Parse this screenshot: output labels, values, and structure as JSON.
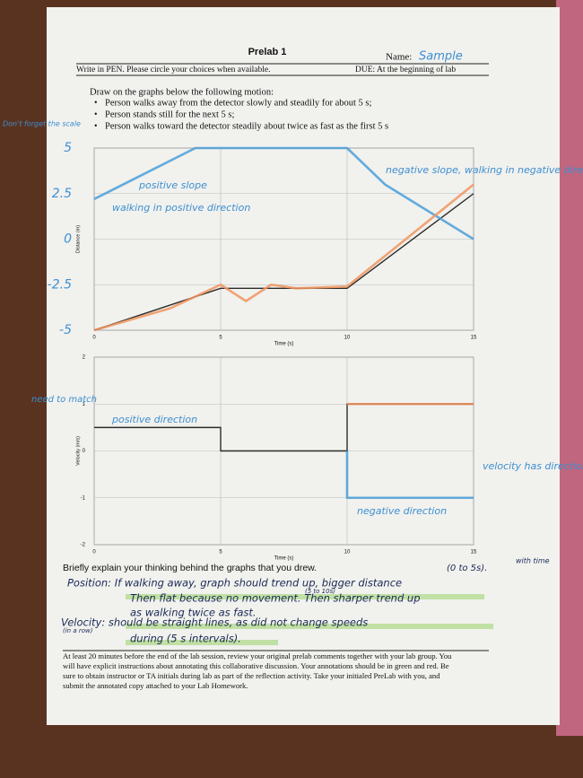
{
  "header": {
    "title": "Prelab 1",
    "name_label": "Name:",
    "name": "Sample",
    "instruction": "Write in PEN.  Please circle your choices when available.",
    "due": "DUE:  At the beginning of lab"
  },
  "task": {
    "intro": "Draw on the graphs below the following motion:",
    "items": [
      "Person walks away from the detector slowly and steadily for about 5 s;",
      "Person stands still for the next 5 s;",
      "Person walks toward the detector steadily about twice as fast as the first 5 s"
    ]
  },
  "chart_data": [
    {
      "type": "line",
      "x_label": "Time (s)",
      "y_label": "Distance (m)",
      "xlim": [
        0,
        15
      ],
      "xticks": [
        0,
        5,
        10,
        15
      ],
      "ylim": [
        -5,
        5
      ],
      "yticks": [
        -5,
        -2.5,
        0,
        2.5,
        5
      ],
      "grid": true,
      "series": [
        {
          "color": "#2b2b2b",
          "x": [
            0,
            5,
            10,
            15
          ],
          "values": [
            -5,
            -2.7,
            -2.7,
            2.5
          ]
        },
        {
          "color": "#4a9fd8",
          "x": [
            0,
            4,
            10,
            11.5,
            15
          ],
          "values": [
            2.2,
            5,
            5,
            3,
            0
          ]
        },
        {
          "color": "#f0955e",
          "x": [
            0,
            3,
            5,
            6,
            7,
            8,
            10,
            15
          ],
          "values": [
            -5,
            -3.8,
            -2.5,
            -3.4,
            -2.5,
            -2.7,
            -2.6,
            3
          ]
        }
      ]
    },
    {
      "type": "line",
      "x_label": "Time (s)",
      "y_label": "Velocity (m/s)",
      "xlim": [
        0,
        15
      ],
      "xticks": [
        0,
        5,
        10,
        15
      ],
      "ylim": [
        -2,
        2
      ],
      "yticks": [
        -2,
        -1,
        0,
        1,
        2
      ],
      "grid": true,
      "series": [
        {
          "color": "#2b2b2b",
          "x": [
            0,
            5,
            5,
            10,
            10,
            15
          ],
          "values": [
            0.5,
            0.5,
            0,
            0,
            1,
            1
          ]
        },
        {
          "color": "#4a9fd8",
          "x": [
            10,
            10,
            15
          ],
          "values": [
            0,
            -1,
            -1
          ]
        },
        {
          "color": "#f0955e",
          "x": [
            10,
            15
          ],
          "values": [
            1,
            1
          ]
        }
      ]
    }
  ],
  "annotations": [
    "Don't forget the scale",
    "positive slope",
    "walking in positive direction",
    "negative slope, walking in negative direction",
    "need to match",
    "positive direction",
    "velocity has direction",
    "negative direction"
  ],
  "explanation": {
    "prompt": "Briefly explain your thinking behind the graphs that you drew.",
    "notes": [
      "(0 to 5s).",
      "with time",
      "(5 to 10s)",
      "(in a row)"
    ],
    "lines": [
      "Position: If walking away, graph should trend up, bigger distance",
      "Then flat because no movement. Then sharper trend up",
      "as walking twice as fast.",
      "Velocity: should be straight lines, as did not change speeds",
      "during (5 s intervals)."
    ]
  },
  "footer": [
    "At least 20 minutes before the end of the lab session, review your original prelab comments together with your lab group.  You",
    "will have explicit instructions about annotating this collaborative discussion.  Your annotations should be in green and red. Be",
    "sure to obtain instructor or TA initials during lab as part of the reflection activity.  Take your initialed PreLab with you, and",
    "submit the annotated copy attached to your Lab Homework."
  ]
}
